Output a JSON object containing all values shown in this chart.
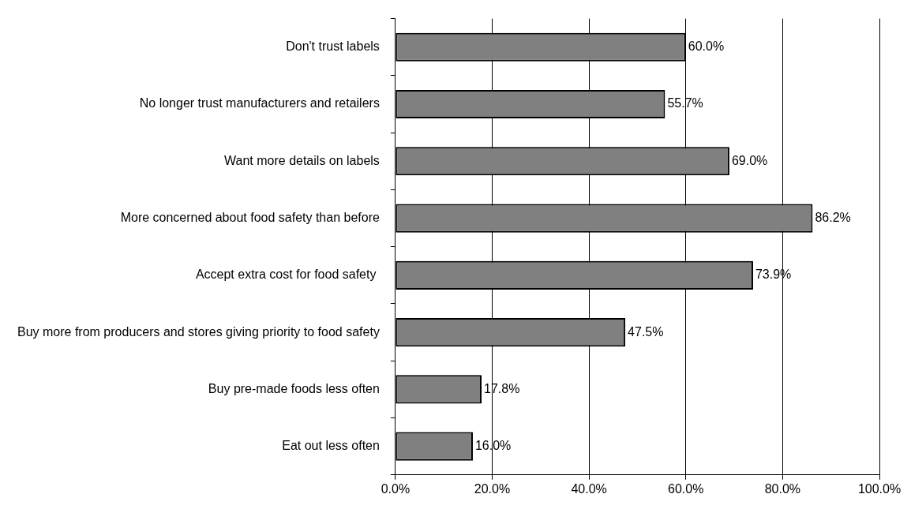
{
  "chart_data": {
    "type": "bar",
    "orientation": "horizontal",
    "categories": [
      "Don't trust labels",
      "No longer trust manufacturers and retailers",
      "Want more details on labels",
      "More concerned about food safety than before",
      "Accept extra cost for food safety ",
      "Buy more from producers and stores giving priority to food safety",
      "Buy pre-made foods less often",
      "Eat out less often"
    ],
    "values": [
      60.0,
      55.7,
      69.0,
      86.2,
      73.9,
      47.5,
      17.8,
      16.0
    ],
    "value_labels": [
      "60.0%",
      "55.7%",
      "69.0%",
      "86.2%",
      "73.9%",
      "47.5%",
      "17.8%",
      "16.0%"
    ],
    "color": "#808080",
    "xlim": [
      0,
      100
    ],
    "xticks": [
      {
        "value": 0,
        "label": "0.0%"
      },
      {
        "value": 20,
        "label": "20.0%"
      },
      {
        "value": 40,
        "label": "40.0%"
      },
      {
        "value": 60,
        "label": "60.0%"
      },
      {
        "value": 80,
        "label": "80.0%"
      },
      {
        "value": 100,
        "label": "100.0%"
      }
    ],
    "grid": "x",
    "legend": false
  }
}
